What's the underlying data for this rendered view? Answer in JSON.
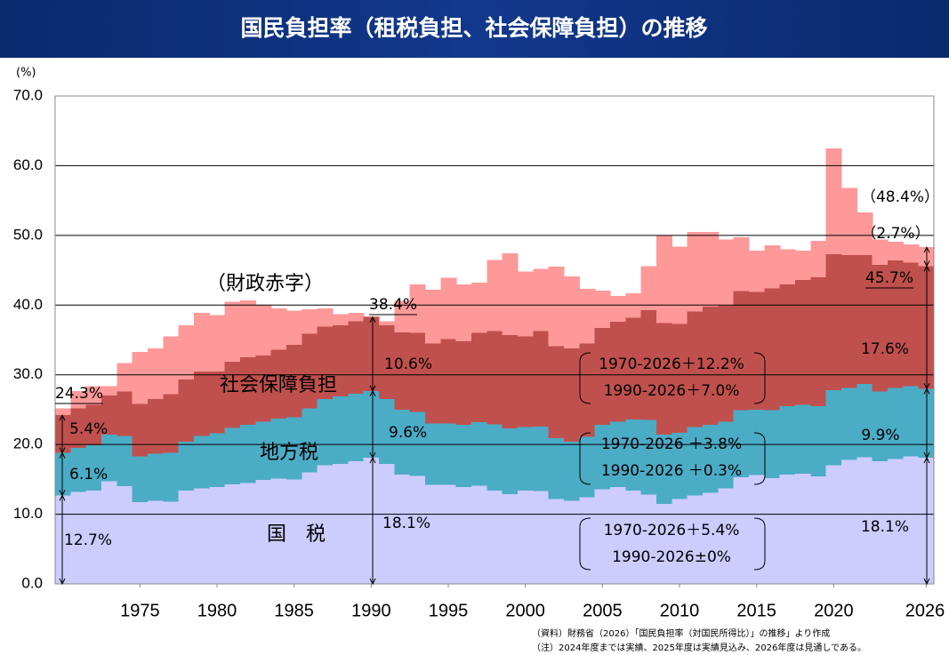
{
  "title": "国民負担率（租税負担、社会保障負担）の推移",
  "chart_data": {
    "type": "stacked-step-area",
    "y_unit": "(%)",
    "x": [
      1970,
      1971,
      1972,
      1973,
      1974,
      1975,
      1976,
      1977,
      1978,
      1979,
      1980,
      1981,
      1982,
      1983,
      1984,
      1985,
      1986,
      1987,
      1988,
      1989,
      1990,
      1991,
      1992,
      1993,
      1994,
      1995,
      1996,
      1997,
      1998,
      1999,
      2000,
      2001,
      2002,
      2003,
      2004,
      2005,
      2006,
      2007,
      2008,
      2009,
      2010,
      2011,
      2012,
      2013,
      2014,
      2015,
      2016,
      2017,
      2018,
      2019,
      2020,
      2021,
      2022,
      2023,
      2024,
      2025,
      2026
    ],
    "xlim": [
      1969.5,
      2026.5
    ],
    "xticks": [
      1975,
      1980,
      1985,
      1990,
      1995,
      2000,
      2005,
      2010,
      2015,
      2020,
      2026
    ],
    "ylim": [
      0,
      70
    ],
    "yticks": [
      {
        "value": 0,
        "label": "0.0"
      },
      {
        "value": 10,
        "label": "10.0"
      },
      {
        "value": 20,
        "label": "20.0"
      },
      {
        "value": 30,
        "label": "30.0"
      },
      {
        "value": 40,
        "label": "40.0"
      },
      {
        "value": 50,
        "label": "50.0"
      },
      {
        "value": 60,
        "label": "60.0"
      },
      {
        "value": 70,
        "label": "70.0"
      }
    ],
    "grid": true,
    "series": [
      {
        "name": "国　税",
        "color": "#ccccff",
        "values": [
          12.7,
          13.2,
          13.4,
          14.7,
          14.0,
          11.7,
          11.9,
          11.8,
          13.4,
          13.7,
          13.9,
          14.3,
          14.5,
          14.9,
          15.1,
          15.0,
          16.0,
          17.0,
          17.2,
          17.6,
          18.1,
          17.2,
          15.7,
          15.5,
          14.2,
          14.2,
          13.9,
          14.1,
          13.4,
          12.9,
          13.4,
          13.3,
          12.2,
          11.9,
          12.4,
          13.6,
          13.9,
          13.4,
          12.8,
          11.5,
          12.2,
          12.7,
          13.1,
          13.7,
          15.3,
          15.6,
          15.2,
          15.7,
          15.8,
          15.4,
          17.0,
          17.8,
          18.2,
          17.6,
          17.9,
          18.3,
          18.1
        ]
      },
      {
        "name": "地方税",
        "color": "#4bacc6",
        "values": [
          6.1,
          6.3,
          6.5,
          6.7,
          7.2,
          6.6,
          6.8,
          7.0,
          7.0,
          7.5,
          7.7,
          8.1,
          8.3,
          8.4,
          8.6,
          8.9,
          9.2,
          9.5,
          9.7,
          9.7,
          9.6,
          9.3,
          9.3,
          9.2,
          8.8,
          8.8,
          8.9,
          9.1,
          9.5,
          9.4,
          9.1,
          9.3,
          8.7,
          8.5,
          8.7,
          9.2,
          9.4,
          10.2,
          10.7,
          9.9,
          9.5,
          9.8,
          9.7,
          9.6,
          9.6,
          9.4,
          9.7,
          9.8,
          9.9,
          10.1,
          10.8,
          10.3,
          10.5,
          10.0,
          10.2,
          10.1,
          9.9
        ]
      },
      {
        "name": "社会保障負担",
        "color": "#c0504d",
        "values": [
          5.4,
          5.7,
          5.8,
          5.6,
          6.4,
          7.5,
          7.8,
          8.4,
          8.9,
          9.3,
          8.9,
          9.5,
          9.7,
          9.5,
          9.9,
          10.4,
          10.7,
          10.4,
          10.2,
          10.4,
          10.6,
          10.6,
          11.1,
          11.3,
          11.5,
          12.1,
          12.0,
          12.8,
          13.4,
          13.4,
          13.0,
          13.7,
          13.2,
          13.4,
          13.4,
          13.9,
          14.3,
          14.6,
          15.8,
          16.0,
          15.6,
          16.6,
          17.0,
          16.6,
          17.1,
          16.9,
          17.5,
          17.5,
          17.9,
          18.5,
          19.5,
          19.1,
          18.5,
          18.2,
          18.3,
          17.7,
          17.6
        ]
      },
      {
        "name": "（財政赤字）",
        "color": "#ff9999",
        "values": [
          1.0,
          2.5,
          2.7,
          1.4,
          4.1,
          7.5,
          7.3,
          8.3,
          7.8,
          8.4,
          8.1,
          8.6,
          8.2,
          7.2,
          5.9,
          4.9,
          3.5,
          2.6,
          1.6,
          1.2,
          0.1,
          0.6,
          4.5,
          7.0,
          7.7,
          8.8,
          8.2,
          7.2,
          10.2,
          11.7,
          9.3,
          8.9,
          11.4,
          10.3,
          7.8,
          5.4,
          3.7,
          3.5,
          6.3,
          12.6,
          11.1,
          11.4,
          10.7,
          9.5,
          7.7,
          5.9,
          6.2,
          5.0,
          4.2,
          5.2,
          15.2,
          9.6,
          6.1,
          3.6,
          2.7,
          2.6,
          2.7
        ]
      }
    ],
    "annotations": [
      "社会保障負担",
      "地方税",
      "国　税",
      "24.3%",
      "5.4%",
      "6.1%",
      "12.7%",
      "38.4%",
      "10.6%",
      "9.6%",
      "18.1%",
      "1970-2026＋12.2%",
      "1990-2026＋7.0%",
      "1970-2026 ＋3.8%",
      "1990-2026 ＋0.3%",
      "1970-2026＋5.4%",
      "1990-2026±0%",
      "（48.4%）",
      "（2.7%）",
      "45.7%",
      "17.6%",
      "9.9%",
      "18.1%"
    ],
    "notes": [
      "（資料）財務省（2026）「国民負担率（対国民所得比）」の推移」より作成",
      "（注）2024年度までは実績、2025年度は実績見込み、2026年度は見通しである。"
    ]
  }
}
